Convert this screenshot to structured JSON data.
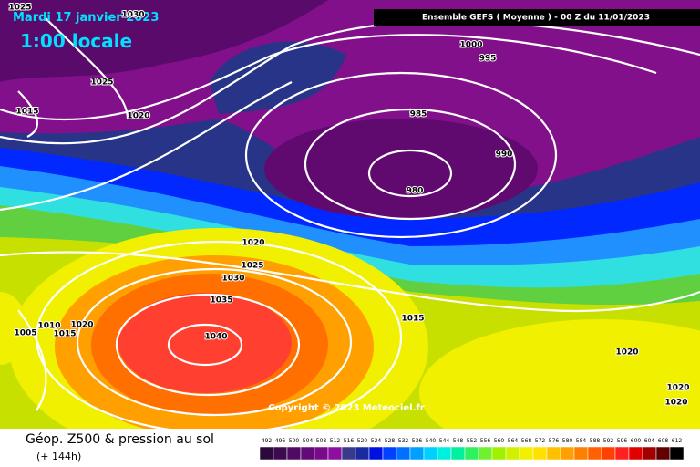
{
  "header": {
    "date": "Mardi 17 janvier 2023",
    "time": "1:00 locale",
    "model": "Ensemble GEFS ( Moyenne ) - 00 Z du 11/01/2023"
  },
  "isobar_labels": [
    1025,
    1030,
    1025,
    1015,
    1020,
    1000,
    995,
    985,
    990,
    980,
    1020,
    1025,
    1030,
    1035,
    1040,
    1015,
    1005,
    1010,
    1015,
    1020,
    1020,
    1020,
    1020
  ],
  "copyright": "Copyright © 2023 Meteociel.fr",
  "footer": {
    "title": "Géop. Z500 & pression au sol",
    "lead": "(+ 144h)"
  },
  "legend": {
    "values": [
      492,
      496,
      500,
      504,
      508,
      512,
      516,
      520,
      524,
      528,
      532,
      536,
      540,
      544,
      548,
      552,
      556,
      560,
      564,
      568,
      572,
      576,
      580,
      584,
      588,
      592,
      596,
      600,
      604,
      608,
      612
    ],
    "colors": [
      "#2a0a3a",
      "#3c0a4e",
      "#500a62",
      "#640a78",
      "#7a0a8c",
      "#8c10a0",
      "#3a3a8a",
      "#1a2aa0",
      "#0010e0",
      "#0040ff",
      "#0070ff",
      "#00a0ff",
      "#00d0ff",
      "#00f0e0",
      "#00f0a0",
      "#30f060",
      "#70f030",
      "#a0f000",
      "#d0f000",
      "#f0f000",
      "#ffe000",
      "#ffc000",
      "#ffa000",
      "#ff8000",
      "#ff6000",
      "#ff4000",
      "#ff2020",
      "#e00000",
      "#a00000",
      "#600000",
      "#000000"
    ]
  }
}
